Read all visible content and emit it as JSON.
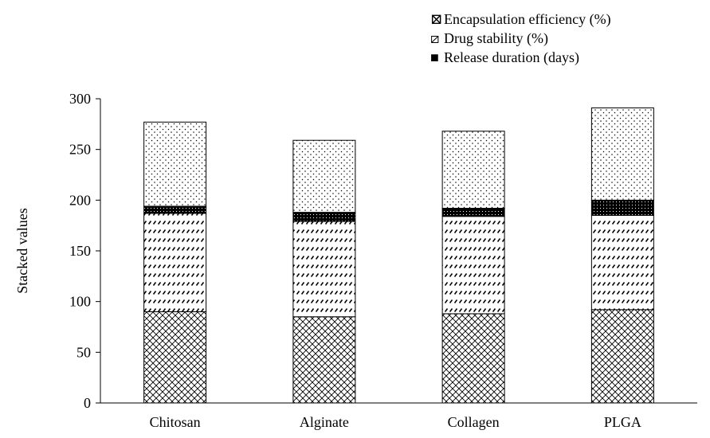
{
  "chart_data": {
    "type": "bar",
    "stacked": true,
    "categories": [
      "Chitosan",
      "Alginate",
      "Collagen",
      "PLGA"
    ],
    "series": [
      {
        "name": "Encapsulation efficiency (%)",
        "values": [
          90,
          85,
          88,
          92
        ],
        "pattern": "crosshatch"
      },
      {
        "name": "Drug stability (%)",
        "values": [
          97,
          94,
          96,
          93
        ],
        "pattern": "diagonal-dash"
      },
      {
        "name": "Release duration (days)",
        "values": [
          7,
          9,
          8,
          15
        ],
        "pattern": "dense-dots"
      },
      {
        "name": "",
        "values": [
          83,
          71,
          76,
          91
        ],
        "pattern": "light-dots"
      }
    ],
    "xlabel": "",
    "ylabel": "Stacked values",
    "ylim": [
      0,
      300
    ],
    "yticks": [
      0,
      50,
      100,
      150,
      200,
      250,
      300
    ],
    "grid": false,
    "legend_position": "top-right",
    "legend": [
      {
        "label": "Encapsulation efficiency (%)",
        "symbol": "⊠"
      },
      {
        "label": "Drug stability (%)",
        "symbol": "⧄"
      },
      {
        "label": "Release duration (days)",
        "symbol": "■"
      }
    ],
    "colors": {
      "bar_stroke": "#000000",
      "axis": "#000000"
    }
  }
}
